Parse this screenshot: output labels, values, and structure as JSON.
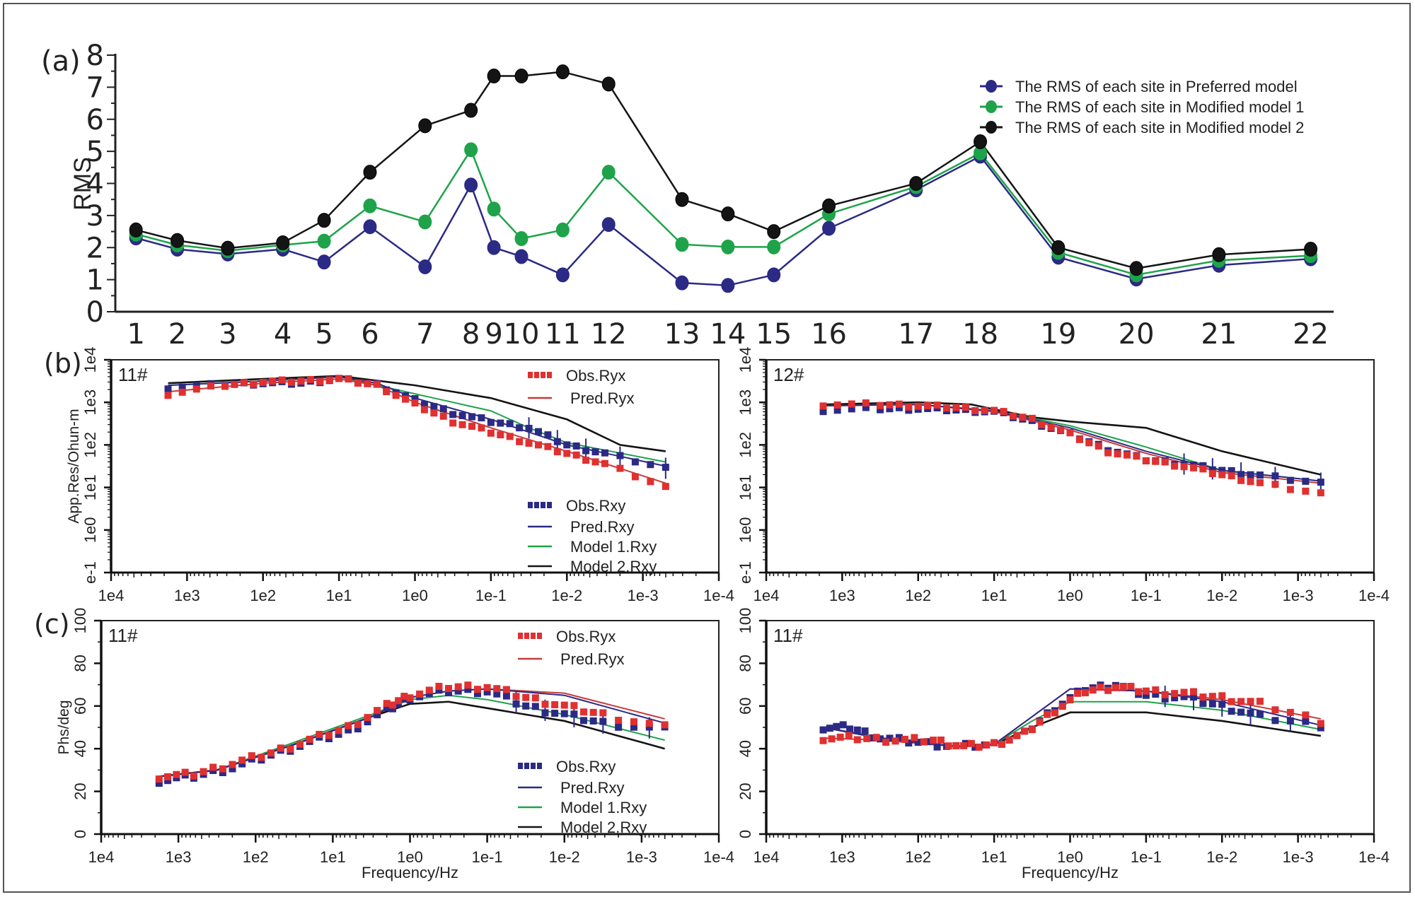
{
  "figure": {
    "panel_labels": [
      "(a)",
      "(b)",
      "(c)"
    ]
  },
  "chart_data": [
    {
      "id": "a",
      "type": "line",
      "panel_label": "(a)",
      "title": "",
      "xlabel": "",
      "ylabel": "RMS",
      "ylim": [
        0,
        8
      ],
      "yticks": [
        0,
        1,
        2,
        3,
        4,
        5,
        6,
        7,
        8
      ],
      "grid": false,
      "legend_position": "top-right",
      "categories": [
        "1",
        "2",
        "3",
        "4",
        "5",
        "6",
        "7",
        "8",
        "9",
        "10",
        "11",
        "12",
        "13",
        "14",
        "15",
        "16",
        "17",
        "18",
        "19",
        "20",
        "21",
        "22"
      ],
      "x_positions": [
        1,
        1.9,
        3.0,
        4.2,
        5.1,
        6.1,
        7.3,
        8.3,
        8.8,
        9.4,
        10.3,
        11.3,
        12.9,
        13.9,
        14.9,
        16.1,
        18.0,
        19.4,
        21.1,
        22.8,
        24.6,
        26.6
      ],
      "series": [
        {
          "name": "The RMS of each site in Preferred model",
          "color": "#2b2a85",
          "values": [
            2.3,
            1.95,
            1.8,
            1.95,
            1.55,
            2.65,
            1.4,
            3.95,
            2.0,
            1.72,
            1.15,
            2.72,
            0.9,
            0.82,
            1.15,
            2.6,
            3.8,
            4.85,
            1.7,
            1.02,
            1.45,
            1.65
          ]
        },
        {
          "name": "The RMS of each site in Modified  model 1",
          "color": "#1ea34a",
          "values": [
            2.42,
            2.08,
            1.9,
            2.08,
            2.2,
            3.3,
            2.8,
            5.05,
            3.2,
            2.28,
            2.55,
            4.35,
            2.1,
            2.02,
            2.02,
            3.05,
            3.9,
            4.95,
            1.85,
            1.15,
            1.6,
            1.75
          ]
        },
        {
          "name": "The RMS of each site in Modified  model 2",
          "color": "#141414",
          "values": [
            2.55,
            2.22,
            1.98,
            2.15,
            2.85,
            4.35,
            5.8,
            6.28,
            7.35,
            7.35,
            7.48,
            7.1,
            3.5,
            3.05,
            2.5,
            3.3,
            4.0,
            5.3,
            2.0,
            1.35,
            1.78,
            1.95
          ]
        }
      ]
    },
    {
      "id": "b-left",
      "type": "line",
      "panel_label": "(b)",
      "site_label": "11#",
      "xlabel": "",
      "ylabel": "App.Res/Ohun-m",
      "xscale": "log-reversed",
      "xlim_exp": [
        4,
        -4
      ],
      "xticks": [
        "1e4",
        "1e3",
        "1e2",
        "1e1",
        "1e0",
        "1e-1",
        "1e-2",
        "1e-3",
        "1e-4"
      ],
      "yscale": "log",
      "ylim_exp": [
        -1,
        4
      ],
      "yticks": [
        "e-1",
        "1e0",
        "1e1",
        "1e2",
        "1e3",
        "1e4"
      ],
      "legend": [
        "Obs.Ryx",
        "Pred.Ryx",
        "Obs.Rxy",
        "Pred.Rxy",
        "Model 1.Rxy",
        "Model 2.Rxy"
      ],
      "series": [
        {
          "name": "Obs.Ryx",
          "kind": "points",
          "color": "#e03030",
          "log_f": [
            3.25,
            2.5,
            2.0,
            1.5,
            1.0,
            0.5,
            0.0,
            -0.5,
            -1.0,
            -1.5,
            -2.0,
            -2.5,
            -3.3
          ],
          "log_rho": [
            3.2,
            3.4,
            3.48,
            3.5,
            3.55,
            3.4,
            2.95,
            2.55,
            2.3,
            2.05,
            1.8,
            1.55,
            1.0
          ]
        },
        {
          "name": "Obs.Rxy",
          "kind": "points",
          "color": "#2b2a85",
          "log_f": [
            3.25,
            2.5,
            2.0,
            1.5,
            1.0,
            0.5,
            0.0,
            -0.5,
            -1.0,
            -1.5,
            -2.0,
            -2.5,
            -3.3
          ],
          "log_rho": [
            3.35,
            3.42,
            3.45,
            3.45,
            3.55,
            3.42,
            3.05,
            2.75,
            2.55,
            2.4,
            2.0,
            1.8,
            1.45
          ]
        },
        {
          "name": "Pred.Rxy",
          "kind": "line",
          "color": "#2b2a85",
          "log_f": [
            3.25,
            2.0,
            1.0,
            0.5,
            0.0,
            -1.0,
            -2.0,
            -3.3
          ],
          "log_rho": [
            3.4,
            3.5,
            3.6,
            3.45,
            3.1,
            2.6,
            2.0,
            1.5
          ]
        },
        {
          "name": "Pred.Ryx",
          "kind": "line",
          "color": "#c83a3a",
          "log_f": [
            3.25,
            2.0,
            1.0,
            0.5,
            0.0,
            -1.0,
            -2.0,
            -3.3
          ],
          "log_rho": [
            3.25,
            3.45,
            3.55,
            3.4,
            3.0,
            2.4,
            1.85,
            1.1
          ]
        },
        {
          "name": "Model 1.Rxy",
          "kind": "line",
          "color": "#1ea34a",
          "log_f": [
            3.25,
            2.0,
            1.0,
            0.0,
            -1.0,
            -1.5,
            -2.0,
            -3.3
          ],
          "log_rho": [
            3.4,
            3.5,
            3.6,
            3.2,
            2.8,
            2.4,
            2.05,
            1.6
          ]
        },
        {
          "name": "Model 2.Rxy",
          "kind": "line",
          "color": "#141414",
          "log_f": [
            3.25,
            2.0,
            1.0,
            0.0,
            -1.0,
            -2.0,
            -2.7,
            -3.3
          ],
          "log_rho": [
            3.45,
            3.55,
            3.62,
            3.4,
            3.1,
            2.6,
            2.0,
            1.85
          ]
        }
      ]
    },
    {
      "id": "b-right",
      "type": "line",
      "site_label": "12#",
      "xlabel": "",
      "ylabel": "",
      "xscale": "log-reversed",
      "xlim_exp": [
        4,
        -4
      ],
      "xticks": [
        "1e4",
        "1e3",
        "1e2",
        "1e1",
        "1e0",
        "1e-1",
        "1e-2",
        "1e-3",
        "1e-4"
      ],
      "yscale": "log",
      "ylim_exp": [
        -1,
        4
      ],
      "yticks": [
        "e-1",
        "1e0",
        "1e1",
        "1e2",
        "1e3",
        "1e4"
      ],
      "series": [
        {
          "name": "Obs.Ryx",
          "kind": "points",
          "color": "#e03030",
          "log_f": [
            3.25,
            2.5,
            2.0,
            1.5,
            1.0,
            0.5,
            0.0,
            -0.5,
            -1.0,
            -1.5,
            -2.0,
            -2.5,
            -3.3
          ],
          "log_rho": [
            2.95,
            2.95,
            2.92,
            2.88,
            2.8,
            2.6,
            2.25,
            1.85,
            1.65,
            1.5,
            1.3,
            1.1,
            0.85
          ]
        },
        {
          "name": "Obs.Rxy",
          "kind": "points",
          "color": "#2b2a85",
          "log_f": [
            3.25,
            2.5,
            2.0,
            1.5,
            1.0,
            0.5,
            0.0,
            -0.5,
            -1.0,
            -1.5,
            -2.0,
            -2.5,
            -3.3
          ],
          "log_rho": [
            2.82,
            2.85,
            2.85,
            2.82,
            2.78,
            2.55,
            2.25,
            1.9,
            1.65,
            1.55,
            1.4,
            1.28,
            1.1
          ]
        },
        {
          "name": "Pred.Rxy",
          "kind": "line",
          "color": "#2b2a85",
          "log_f": [
            3.25,
            2.0,
            1.0,
            0.0,
            -1.0,
            -2.0,
            -3.3
          ],
          "log_rho": [
            2.92,
            2.95,
            2.8,
            2.4,
            1.85,
            1.4,
            1.15
          ]
        },
        {
          "name": "Pred.Ryx",
          "kind": "line",
          "color": "#c83a3a",
          "log_f": [
            3.25,
            2.0,
            1.0,
            0.0,
            -1.0,
            -2.0,
            -3.3
          ],
          "log_rho": [
            2.92,
            2.95,
            2.78,
            2.35,
            1.8,
            1.35,
            1.1
          ]
        },
        {
          "name": "Model 1.Rxy",
          "kind": "line",
          "color": "#1ea34a",
          "log_f": [
            3.25,
            2.0,
            1.0,
            0.0,
            -1.0,
            -2.0,
            -3.3
          ],
          "log_rho": [
            2.92,
            2.95,
            2.8,
            2.45,
            1.95,
            1.4,
            1.15
          ]
        },
        {
          "name": "Model 2.Rxy",
          "kind": "line",
          "color": "#141414",
          "log_f": [
            3.25,
            2.0,
            1.3,
            0.5,
            0.0,
            -1.0,
            -2.0,
            -3.3
          ],
          "log_rho": [
            2.95,
            3.0,
            2.95,
            2.65,
            2.55,
            2.4,
            1.85,
            1.3
          ]
        }
      ]
    },
    {
      "id": "c-left",
      "type": "line",
      "panel_label": "(c)",
      "site_label": "11#",
      "xlabel": "Frequency/Hz",
      "ylabel": "Phs/deg",
      "xscale": "log-reversed",
      "xlim_exp": [
        4,
        -4
      ],
      "xticks": [
        "1e4",
        "1e3",
        "1e2",
        "1e1",
        "1e0",
        "1e-1",
        "1e-2",
        "1e-3",
        "1e-4"
      ],
      "ylim": [
        0,
        100
      ],
      "yticks": [
        0,
        20,
        40,
        60,
        80,
        100
      ],
      "legend": [
        "Obs.Ryx",
        "Pred.Ryx",
        "Obs.Rxy",
        "Pred.Rxy",
        "Model 1.Rxy",
        "Model 2.Rxy"
      ],
      "series": [
        {
          "name": "Obs.Ryx",
          "kind": "points",
          "color": "#e03030",
          "log_f": [
            3.25,
            2.8,
            2.3,
            1.8,
            1.3,
            0.8,
            0.3,
            0.0,
            -0.5,
            -1.0,
            -1.5,
            -2.0,
            -2.5,
            -3.3
          ],
          "values": [
            27,
            28,
            33,
            38,
            44,
            50,
            60,
            65,
            69,
            69,
            64,
            60,
            56,
            50
          ]
        },
        {
          "name": "Obs.Rxy",
          "kind": "points",
          "color": "#2b2a85",
          "log_f": [
            3.25,
            2.8,
            2.3,
            1.8,
            1.3,
            0.8,
            0.3,
            0.0,
            -0.5,
            -1.0,
            -1.5,
            -2.0,
            -2.5,
            -3.3
          ],
          "values": [
            25,
            27,
            31,
            37,
            43,
            48,
            58,
            64,
            67,
            67,
            60,
            56,
            52,
            49
          ]
        },
        {
          "name": "Pred.Rxy",
          "kind": "line",
          "color": "#2b2a85",
          "log_f": [
            3.25,
            2.5,
            1.5,
            0.5,
            0.0,
            -0.5,
            -1.0,
            -2.0,
            -3.3
          ],
          "values": [
            27,
            30,
            42,
            55,
            64,
            67,
            68,
            65,
            52
          ]
        },
        {
          "name": "Pred.Ryx",
          "kind": "line",
          "color": "#c83a3a",
          "log_f": [
            3.25,
            2.5,
            1.5,
            0.5,
            0.0,
            -0.5,
            -1.0,
            -2.0,
            -3.3
          ],
          "values": [
            27,
            30,
            42,
            55,
            64,
            67,
            68,
            66,
            54
          ]
        },
        {
          "name": "Model 1.Rxy",
          "kind": "line",
          "color": "#1ea34a",
          "log_f": [
            3.25,
            2.5,
            1.5,
            0.5,
            0.0,
            -0.5,
            -1.0,
            -2.0,
            -3.3
          ],
          "values": [
            27,
            30,
            43,
            56,
            63,
            65,
            63,
            56,
            44
          ]
        },
        {
          "name": "Model 2.Rxy",
          "kind": "line",
          "color": "#141414",
          "log_f": [
            3.25,
            2.5,
            1.5,
            0.5,
            0.0,
            -0.5,
            -1.0,
            -2.0,
            -3.3
          ],
          "values": [
            27,
            30,
            42,
            55,
            61,
            62,
            59,
            53,
            40
          ]
        }
      ]
    },
    {
      "id": "c-right",
      "type": "line",
      "site_label": "11#",
      "xlabel": "Frequency/Hz",
      "ylabel": "",
      "xscale": "log-reversed",
      "xlim_exp": [
        4,
        -4
      ],
      "xticks": [
        "1e4",
        "1e3",
        "1e2",
        "1e1",
        "1e0",
        "1e-1",
        "1e-2",
        "1e-3",
        "1e-4"
      ],
      "ylim": [
        0,
        100
      ],
      "yticks": [
        0,
        20,
        40,
        60,
        80,
        100
      ],
      "series": [
        {
          "name": "Obs.Ryx",
          "kind": "points",
          "color": "#e03030",
          "log_f": [
            3.25,
            2.8,
            2.3,
            1.8,
            1.4,
            1.0,
            0.6,
            0.2,
            -0.2,
            -0.6,
            -1.0,
            -1.5,
            -2.0,
            -2.5,
            -3.3
          ],
          "values": [
            45,
            45,
            44,
            44,
            41,
            42,
            47,
            58,
            67,
            69,
            67,
            66,
            64,
            61,
            53
          ]
        },
        {
          "name": "Obs.Rxy",
          "kind": "points",
          "color": "#2b2a85",
          "log_f": [
            3.25,
            2.9,
            2.5,
            2.0,
            1.5,
            1.0,
            0.6,
            0.2,
            -0.2,
            -0.6,
            -1.0,
            -1.5,
            -2.0,
            -2.5,
            -3.3
          ],
          "values": [
            50,
            50,
            45,
            43,
            41,
            42,
            47,
            59,
            68,
            70,
            65,
            64,
            60,
            55,
            51
          ]
        },
        {
          "name": "Pred.Rxy",
          "kind": "line",
          "color": "#2b2a85",
          "log_f": [
            3.25,
            2.5,
            1.5,
            1.0,
            0.5,
            0.0,
            -1.0,
            -2.0,
            -3.3
          ],
          "values": [
            50,
            45,
            41,
            42,
            55,
            68,
            67,
            62,
            51
          ]
        },
        {
          "name": "Pred.Ryx",
          "kind": "line",
          "color": "#c83a3a",
          "log_f": [
            3.25,
            2.5,
            1.5,
            1.0,
            0.5,
            0.0,
            -1.0,
            -2.0,
            -3.3
          ],
          "values": [
            45,
            44,
            41,
            42,
            55,
            68,
            67,
            63,
            54
          ]
        },
        {
          "name": "Model 1.Rxy",
          "kind": "line",
          "color": "#1ea34a",
          "log_f": [
            3.25,
            2.5,
            1.5,
            1.0,
            0.5,
            0.0,
            -1.0,
            -2.0,
            -3.3
          ],
          "values": [
            50,
            45,
            41,
            42,
            53,
            62,
            62,
            58,
            49
          ]
        },
        {
          "name": "Model 2.Rxy",
          "kind": "line",
          "color": "#141414",
          "log_f": [
            3.25,
            2.5,
            1.5,
            1.0,
            0.5,
            0.0,
            -1.0,
            -2.0,
            -3.3
          ],
          "values": [
            50,
            45,
            41,
            42,
            50,
            57,
            57,
            53,
            46
          ]
        }
      ]
    }
  ]
}
